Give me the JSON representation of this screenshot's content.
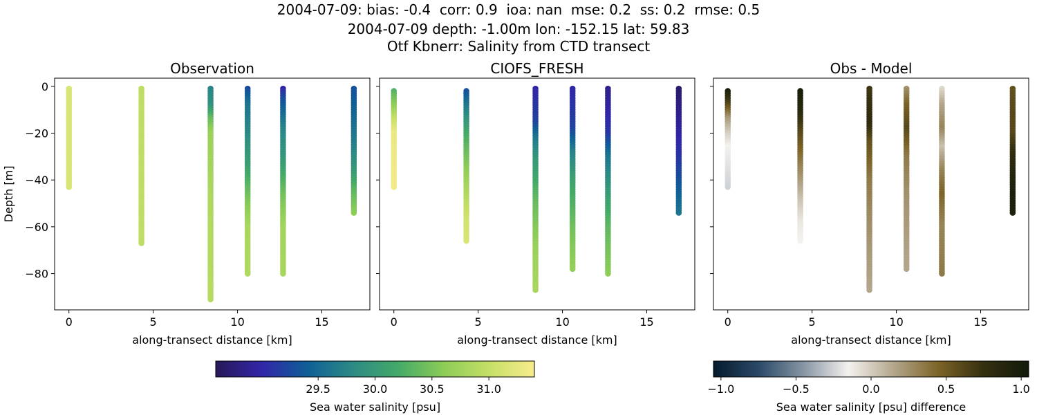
{
  "header": {
    "line1": "2004-07-09: bias: -0.4  corr: 0.9  ioa: nan  mse: 0.2  ss: 0.2  rmse: 0.5",
    "line2": "2004-07-09 depth: -1.00m lon: -152.15 lat: 59.83",
    "line3": "Otf Kbnerr: Salinity from CTD transect"
  },
  "chart_data": [
    {
      "type": "scatter",
      "title": "Observation",
      "xlabel": "along-transect distance [km]",
      "ylabel": "Depth [m]",
      "xlim": [
        -0.85,
        17.85
      ],
      "ylim": [
        -95.5,
        3.5
      ],
      "xticks": [
        "0",
        "5",
        "10",
        "15"
      ],
      "yticks": [
        "0",
        "−20",
        "−40",
        "−60",
        "−80"
      ],
      "colorbar": "salinity",
      "casts": [
        {
          "x": 0.0,
          "top": -1,
          "bottom": -43,
          "profile": [
            [
              -1,
              31.15
            ],
            [
              -43,
              31.15
            ]
          ]
        },
        {
          "x": 4.3,
          "top": -1,
          "bottom": -67,
          "profile": [
            [
              -1,
              30.95
            ],
            [
              -67,
              30.95
            ]
          ]
        },
        {
          "x": 8.4,
          "top": -1,
          "bottom": -91,
          "profile": [
            [
              -1,
              29.75
            ],
            [
              -8,
              29.9
            ],
            [
              -14,
              30.4
            ],
            [
              -20,
              30.7
            ],
            [
              -50,
              30.85
            ],
            [
              -91,
              30.9
            ]
          ]
        },
        {
          "x": 10.6,
          "top": -1,
          "bottom": -80,
          "profile": [
            [
              -1,
              29.25
            ],
            [
              -8,
              29.6
            ],
            [
              -20,
              29.8
            ],
            [
              -35,
              30.1
            ],
            [
              -48,
              30.5
            ],
            [
              -60,
              30.8
            ],
            [
              -80,
              30.85
            ]
          ]
        },
        {
          "x": 12.7,
          "top": -1,
          "bottom": -80,
          "profile": [
            [
              -1,
              29.0
            ],
            [
              -6,
              29.3
            ],
            [
              -18,
              29.75
            ],
            [
              -30,
              29.95
            ],
            [
              -46,
              30.45
            ],
            [
              -60,
              30.75
            ],
            [
              -80,
              30.8
            ]
          ]
        },
        {
          "x": 16.9,
          "top": -1,
          "bottom": -54,
          "profile": [
            [
              -1,
              29.3
            ],
            [
              -25,
              29.7
            ],
            [
              -35,
              29.95
            ],
            [
              -45,
              30.35
            ],
            [
              -54,
              30.6
            ]
          ]
        }
      ]
    },
    {
      "type": "scatter",
      "title": "CIOFS_FRESH",
      "xlabel": "along-transect distance [km]",
      "ylabel": "",
      "xlim": [
        -0.85,
        17.85
      ],
      "ylim": [
        -95.5,
        3.5
      ],
      "xticks": [
        "0",
        "5",
        "10",
        "15"
      ],
      "yticks": [
        "",
        "",
        "",
        "",
        ""
      ],
      "colorbar": "salinity",
      "casts": [
        {
          "x": 0.0,
          "top": -2,
          "bottom": -43,
          "profile": [
            [
              -2,
              30.3
            ],
            [
              -8,
              30.6
            ],
            [
              -14,
              31.0
            ],
            [
              -20,
              31.3
            ],
            [
              -43,
              31.35
            ]
          ]
        },
        {
          "x": 4.3,
          "top": -2,
          "bottom": -66,
          "profile": [
            [
              -2,
              29.3
            ],
            [
              -10,
              29.7
            ],
            [
              -20,
              30.2
            ],
            [
              -35,
              30.6
            ],
            [
              -48,
              30.9
            ],
            [
              -58,
              31.1
            ],
            [
              -66,
              31.15
            ]
          ]
        },
        {
          "x": 8.4,
          "top": -1,
          "bottom": -87,
          "profile": [
            [
              -1,
              29.0
            ],
            [
              -15,
              29.2
            ],
            [
              -22,
              29.6
            ],
            [
              -32,
              30.0
            ],
            [
              -50,
              30.4
            ],
            [
              -70,
              30.7
            ],
            [
              -87,
              30.8
            ]
          ]
        },
        {
          "x": 10.6,
          "top": -1,
          "bottom": -78,
          "profile": [
            [
              -1,
              29.0
            ],
            [
              -18,
              29.2
            ],
            [
              -28,
              29.7
            ],
            [
              -40,
              30.1
            ],
            [
              -60,
              30.45
            ],
            [
              -78,
              30.65
            ]
          ]
        },
        {
          "x": 12.7,
          "top": -1,
          "bottom": -80,
          "profile": [
            [
              -1,
              28.85
            ],
            [
              -20,
              29.1
            ],
            [
              -30,
              29.6
            ],
            [
              -45,
              30.0
            ],
            [
              -60,
              30.35
            ],
            [
              -80,
              30.6
            ]
          ]
        },
        {
          "x": 16.9,
          "top": -1,
          "bottom": -54,
          "profile": [
            [
              -1,
              28.7
            ],
            [
              -15,
              28.9
            ],
            [
              -30,
              29.1
            ],
            [
              -45,
              29.4
            ],
            [
              -54,
              29.6
            ]
          ]
        }
      ]
    },
    {
      "type": "scatter",
      "title": "Obs - Model",
      "xlabel": "along-transect distance [km]",
      "ylabel": "",
      "xlim": [
        -0.85,
        17.85
      ],
      "ylim": [
        -95.5,
        3.5
      ],
      "xticks": [
        "0",
        "5",
        "10",
        "15"
      ],
      "yticks": [
        "",
        "",
        "",
        "",
        ""
      ],
      "colorbar": "difference",
      "casts": [
        {
          "x": 0.0,
          "top": -2,
          "bottom": -43,
          "profile": [
            [
              -2,
              0.95
            ],
            [
              -8,
              0.6
            ],
            [
              -14,
              0.2
            ],
            [
              -20,
              0.0
            ],
            [
              -26,
              -0.15
            ],
            [
              -43,
              -0.25
            ]
          ]
        },
        {
          "x": 4.3,
          "top": -2,
          "bottom": -66,
          "profile": [
            [
              -2,
              1.0
            ],
            [
              -10,
              0.85
            ],
            [
              -20,
              0.6
            ],
            [
              -35,
              0.3
            ],
            [
              -48,
              0.05
            ],
            [
              -58,
              -0.1
            ],
            [
              -66,
              -0.15
            ]
          ]
        },
        {
          "x": 8.4,
          "top": -1,
          "bottom": -87,
          "profile": [
            [
              -1,
              0.7
            ],
            [
              -8,
              0.75
            ],
            [
              -16,
              0.8
            ],
            [
              -24,
              0.55
            ],
            [
              -40,
              0.35
            ],
            [
              -60,
              0.25
            ],
            [
              -87,
              0.15
            ]
          ]
        },
        {
          "x": 10.6,
          "top": -1,
          "bottom": -78,
          "profile": [
            [
              -1,
              0.25
            ],
            [
              -8,
              0.45
            ],
            [
              -18,
              0.6
            ],
            [
              -30,
              0.35
            ],
            [
              -45,
              0.25
            ],
            [
              -60,
              0.2
            ],
            [
              -78,
              0.15
            ]
          ]
        },
        {
          "x": 12.7,
          "top": -1,
          "bottom": -80,
          "profile": [
            [
              -1,
              -0.05
            ],
            [
              -8,
              0.15
            ],
            [
              -18,
              0.3
            ],
            [
              -26,
              0.05
            ],
            [
              -36,
              0.3
            ],
            [
              -46,
              0.45
            ],
            [
              -60,
              0.3
            ],
            [
              -80,
              0.35
            ]
          ]
        },
        {
          "x": 16.9,
          "top": -1,
          "bottom": -54,
          "profile": [
            [
              -1,
              0.55
            ],
            [
              -10,
              0.6
            ],
            [
              -20,
              0.6
            ],
            [
              -30,
              0.8
            ],
            [
              -45,
              0.95
            ],
            [
              -54,
              0.95
            ]
          ]
        }
      ]
    }
  ],
  "colorbars": {
    "salinity": {
      "label": "Sea water salinity [psu]",
      "range": [
        28.6,
        31.4
      ],
      "ticks": [
        29.5,
        30.0,
        30.5,
        31.0
      ],
      "tick_labels": [
        "29.5",
        "30.0",
        "30.5",
        "31.0"
      ],
      "colormap": [
        "#271856",
        "#3226a8",
        "#0f5e97",
        "#2c8a86",
        "#43a968",
        "#8ccc57",
        "#c5df66",
        "#f8ec8c"
      ]
    },
    "difference": {
      "label": "Sea water salinity [psu] difference",
      "range": [
        -1.05,
        1.05
      ],
      "ticks": [
        -1.0,
        -0.5,
        0.0,
        0.5,
        1.0
      ],
      "tick_labels": [
        "−1.0",
        "−0.5",
        "0.0",
        "0.5",
        "1.0"
      ],
      "colormap": [
        "#051a2c",
        "#2a4968",
        "#8795a4",
        "#f4f2ef",
        "#b3a68c",
        "#7c6327",
        "#342f10",
        "#111a09"
      ]
    }
  }
}
